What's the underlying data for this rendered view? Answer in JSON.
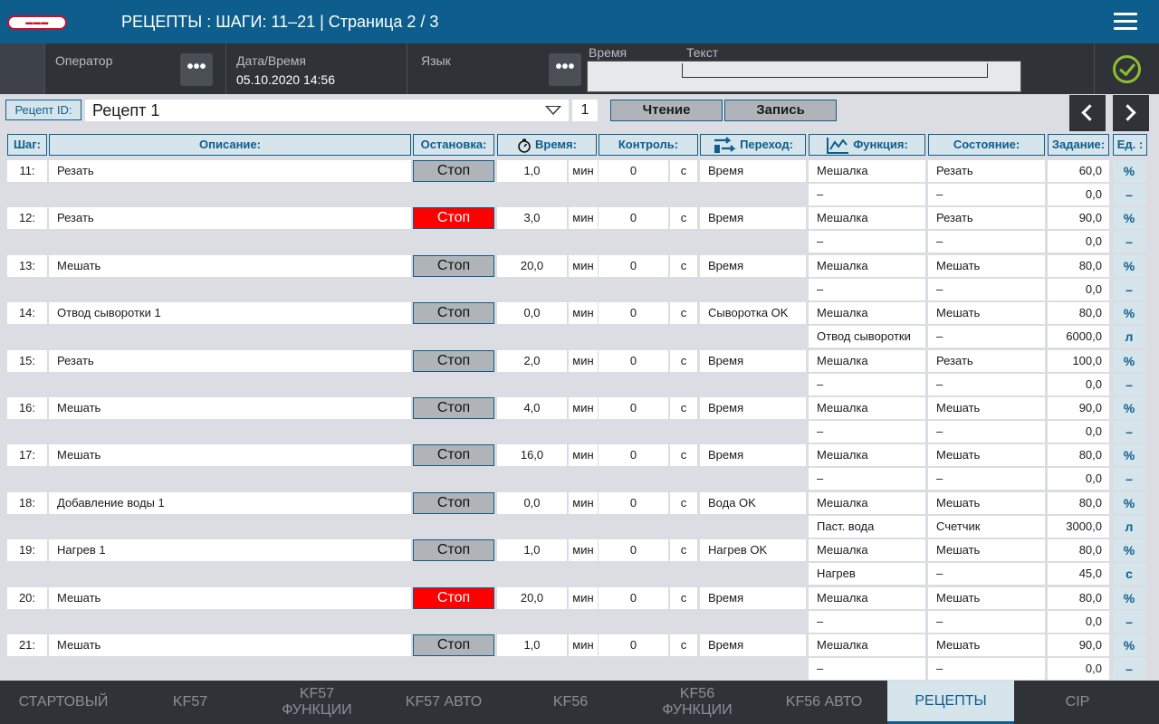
{
  "header": {
    "title": "РЕЦЕПТЫ  : ШАГИ: 11–21 | Страница 2 / 3",
    "logo_icon": "brand-logo"
  },
  "infobar": {
    "operator_label": "Оператор",
    "datetime_label": "Дата/Время",
    "datetime_value": "05.10.2020 14:56",
    "language_label": "Язык",
    "alarm_time_label": "Время",
    "alarm_text_label": "Текст",
    "more_symbol": "•••"
  },
  "recipe": {
    "id_label": "Рецепт ID:",
    "selected": "Рецепт 1",
    "number": "1",
    "read_label": "Чтение",
    "write_label": "Запись"
  },
  "columns": {
    "step": "Шаг:",
    "description": "Описание:",
    "stop": "Остановка:",
    "time": "Время:",
    "control": "Контроль:",
    "transition": "Переход:",
    "function": "Функция:",
    "state": "Состояние:",
    "setpoint": "Задание:",
    "unit": "Ед. :"
  },
  "steps": [
    {
      "step": "11:",
      "desc": "Резать",
      "stop": "Стоп",
      "stop_active": false,
      "time": "1,0",
      "time_unit": "мин",
      "control": "0",
      "control_unit": "с",
      "transition": "Время",
      "f1": "Мешалка",
      "s1": "Резать",
      "v1": "60,0",
      "u1": "%",
      "f2": "–",
      "s2": "–",
      "v2": "0,0",
      "u2": "–"
    },
    {
      "step": "12:",
      "desc": "Резать",
      "stop": "Стоп",
      "stop_active": true,
      "time": "3,0",
      "time_unit": "мин",
      "control": "0",
      "control_unit": "с",
      "transition": "Время",
      "f1": "Мешалка",
      "s1": "Резать",
      "v1": "90,0",
      "u1": "%",
      "f2": "–",
      "s2": "–",
      "v2": "0,0",
      "u2": "–"
    },
    {
      "step": "13:",
      "desc": "Мешать",
      "stop": "Стоп",
      "stop_active": false,
      "time": "20,0",
      "time_unit": "мин",
      "control": "0",
      "control_unit": "с",
      "transition": "Время",
      "f1": "Мешалка",
      "s1": "Мешать",
      "v1": "80,0",
      "u1": "%",
      "f2": "–",
      "s2": "–",
      "v2": "0,0",
      "u2": "–"
    },
    {
      "step": "14:",
      "desc": "Отвод сыворотки 1",
      "stop": "Стоп",
      "stop_active": false,
      "time": "0,0",
      "time_unit": "мин",
      "control": "0",
      "control_unit": "с",
      "transition": "Сыворотка OK",
      "f1": "Мешалка",
      "s1": "Мешать",
      "v1": "80,0",
      "u1": "%",
      "f2": "Отвод сыворотки",
      "s2": "–",
      "v2": "6000,0",
      "u2": "л"
    },
    {
      "step": "15:",
      "desc": "Резать",
      "stop": "Стоп",
      "stop_active": false,
      "time": "2,0",
      "time_unit": "мин",
      "control": "0",
      "control_unit": "с",
      "transition": "Время",
      "f1": "Мешалка",
      "s1": "Резать",
      "v1": "100,0",
      "u1": "%",
      "f2": "–",
      "s2": "–",
      "v2": "0,0",
      "u2": "–"
    },
    {
      "step": "16:",
      "desc": "Мешать",
      "stop": "Стоп",
      "stop_active": false,
      "time": "4,0",
      "time_unit": "мин",
      "control": "0",
      "control_unit": "с",
      "transition": "Время",
      "f1": "Мешалка",
      "s1": "Мешать",
      "v1": "90,0",
      "u1": "%",
      "f2": "–",
      "s2": "–",
      "v2": "0,0",
      "u2": "–"
    },
    {
      "step": "17:",
      "desc": "Мешать",
      "stop": "Стоп",
      "stop_active": false,
      "time": "16,0",
      "time_unit": "мин",
      "control": "0",
      "control_unit": "с",
      "transition": "Время",
      "f1": "Мешалка",
      "s1": "Мешать",
      "v1": "80,0",
      "u1": "%",
      "f2": "–",
      "s2": "–",
      "v2": "0,0",
      "u2": "–"
    },
    {
      "step": "18:",
      "desc": "Добавление воды 1",
      "stop": "Стоп",
      "stop_active": false,
      "time": "0,0",
      "time_unit": "мин",
      "control": "0",
      "control_unit": "с",
      "transition": "Вода OK",
      "f1": "Мешалка",
      "s1": "Мешать",
      "v1": "80,0",
      "u1": "%",
      "f2": "Паст. вода",
      "s2": "Счетчик",
      "v2": "3000,0",
      "u2": "л"
    },
    {
      "step": "19:",
      "desc": "Нагрев 1",
      "stop": "Стоп",
      "stop_active": false,
      "time": "1,0",
      "time_unit": "мин",
      "control": "0",
      "control_unit": "с",
      "transition": "Нагрев OK",
      "f1": "Мешалка",
      "s1": "Мешать",
      "v1": "80,0",
      "u1": "%",
      "f2": "Нагрев",
      "s2": "–",
      "v2": "45,0",
      "u2": "с"
    },
    {
      "step": "20:",
      "desc": "Мешать",
      "stop": "Стоп",
      "stop_active": true,
      "time": "20,0",
      "time_unit": "мин",
      "control": "0",
      "control_unit": "с",
      "transition": "Время",
      "f1": "Мешалка",
      "s1": "Мешать",
      "v1": "80,0",
      "u1": "%",
      "f2": "–",
      "s2": "–",
      "v2": "0,0",
      "u2": "–"
    },
    {
      "step": "21:",
      "desc": "Мешать",
      "stop": "Стоп",
      "stop_active": false,
      "time": "1,0",
      "time_unit": "мин",
      "control": "0",
      "control_unit": "с",
      "transition": "Время",
      "f1": "Мешалка",
      "s1": "Мешать",
      "v1": "90,0",
      "u1": "%",
      "f2": "–",
      "s2": "–",
      "v2": "0,0",
      "u2": "–"
    }
  ],
  "tabs": [
    {
      "label": "СТАРТОВЫЙ",
      "active": false
    },
    {
      "label": "KF57",
      "active": false
    },
    {
      "label": "KF57\nФУНКЦИИ",
      "active": false
    },
    {
      "label": "KF57 АВТО",
      "active": false
    },
    {
      "label": "KF56",
      "active": false
    },
    {
      "label": "KF56\nФУНКЦИИ",
      "active": false
    },
    {
      "label": "KF56 АВТО",
      "active": false
    },
    {
      "label": "РЕЦЕПТЫ",
      "active": true
    },
    {
      "label": "CIP",
      "active": false
    }
  ],
  "colors": {
    "header_bg": "#0d5e8c",
    "stop_active": "#ff0000",
    "ok_green": "#8cbf2f"
  }
}
